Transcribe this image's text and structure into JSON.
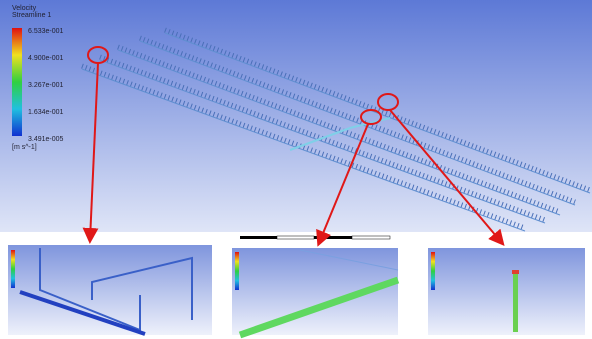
{
  "legend": {
    "title": "Velocity",
    "subtitle": "Streamline 1",
    "labels": [
      "6.533e-001",
      "4.900e-001",
      "3.267e-001",
      "1.634e-001",
      "3.491e-005"
    ],
    "unit": "[m s^-1]"
  }
}
